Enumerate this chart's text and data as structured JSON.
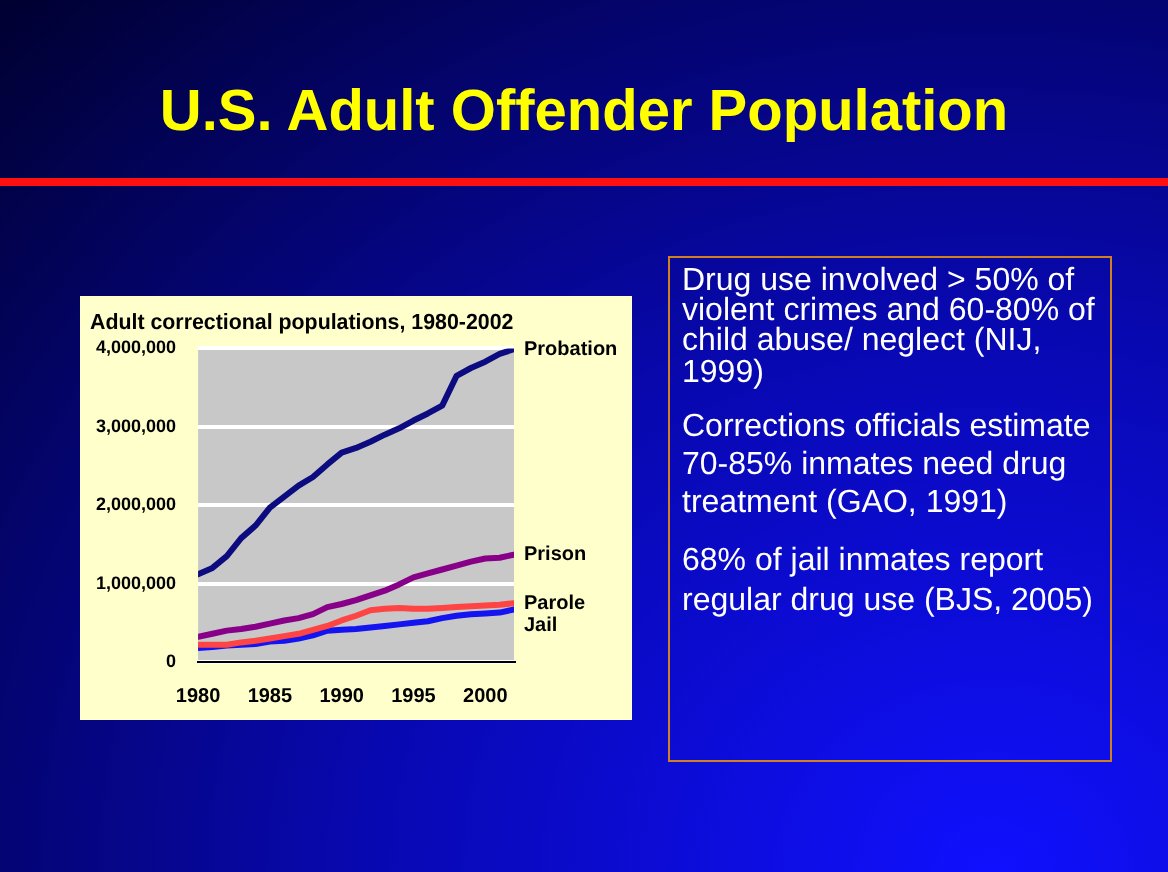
{
  "chart_data": {
    "type": "line",
    "title": "U.S. Adult Offender Population",
    "subtitle": "Adult correctional populations, 1980-2002",
    "x": [
      1980,
      1981,
      1982,
      1983,
      1984,
      1985,
      1986,
      1987,
      1988,
      1989,
      1990,
      1991,
      1992,
      1993,
      1994,
      1995,
      1996,
      1997,
      1998,
      1999,
      2000,
      2001,
      2002
    ],
    "series": [
      {
        "name": "Probation",
        "color": "#0c0c80",
        "values": [
          1120000,
          1200000,
          1350000,
          1580000,
          1740000,
          1970000,
          2110000,
          2250000,
          2360000,
          2520000,
          2670000,
          2730000,
          2810000,
          2900000,
          2980000,
          3080000,
          3170000,
          3270000,
          3650000,
          3750000,
          3830000,
          3930000,
          3990000
        ]
      },
      {
        "name": "Prison",
        "color": "#880088",
        "values": [
          320000,
          360000,
          400000,
          420000,
          450000,
          490000,
          530000,
          560000,
          610000,
          700000,
          740000,
          790000,
          850000,
          910000,
          990000,
          1080000,
          1130000,
          1180000,
          1230000,
          1280000,
          1320000,
          1330000,
          1370000
        ]
      },
      {
        "name": "Parole",
        "color": "#ff4444",
        "values": [
          220000,
          220000,
          220000,
          250000,
          270000,
          300000,
          330000,
          360000,
          410000,
          460000,
          530000,
          590000,
          660000,
          680000,
          690000,
          680000,
          680000,
          690000,
          700000,
          710000,
          720000,
          730000,
          750000
        ]
      },
      {
        "name": "Jail",
        "color": "#1414f0",
        "values": [
          180000,
          190000,
          210000,
          220000,
          230000,
          260000,
          270000,
          300000,
          340000,
          400000,
          410000,
          420000,
          440000,
          460000,
          480000,
          500000,
          520000,
          560000,
          590000,
          610000,
          620000,
          630000,
          670000
        ]
      }
    ],
    "xlim": [
      1980,
      2002
    ],
    "xticks": [
      1980,
      1985,
      1990,
      1995,
      2000
    ],
    "ylim": [
      0,
      4000000
    ],
    "yticks": [
      {
        "value": 0,
        "label": "0"
      },
      {
        "value": 1000000,
        "label": "1,000,000"
      },
      {
        "value": 2000000,
        "label": "2,000,000"
      },
      {
        "value": 3000000,
        "label": "3,000,000"
      },
      {
        "value": 4000000,
        "label": "4,000,000"
      }
    ],
    "grid": "y",
    "legend": false,
    "marker": "none",
    "line_style": "solid",
    "annotations": [
      "Drug use involved > 50% of violent crimes and 60-80% of child abuse/ neglect (NIJ, 1999)",
      "Corrections officials estimate 70-85% inmates need drug treatment (GAO, 1991)",
      "68% of jail inmates report regular drug use (BJS, 2005)"
    ]
  }
}
